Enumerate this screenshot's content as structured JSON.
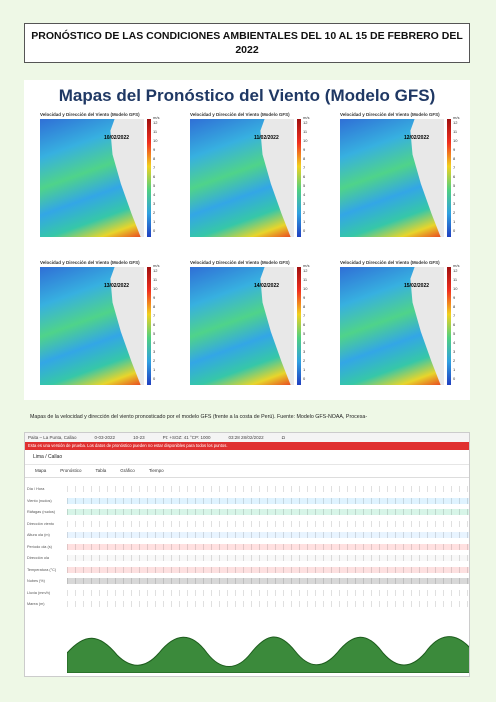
{
  "document": {
    "title": "PRONÓSTICO DE LAS CONDICIONES AMBIENTALES  DEL 10 AL 15 DE FEBRERO DEL 2022"
  },
  "figure": {
    "heading": "Mapas del Pronóstico del Viento (Modelo GFS)",
    "panel_title": "Velocidad y Dirección del Viento (Modelo GFS)",
    "units": "m/s",
    "scale_ticks": [
      "12",
      "11",
      "10",
      "9",
      "8",
      "7",
      "6",
      "5",
      "4",
      "3",
      "2",
      "1",
      "0"
    ],
    "panels": [
      {
        "date": "10/02/2022"
      },
      {
        "date": "11/02/2022"
      },
      {
        "date": "12/02/2022"
      },
      {
        "date": "13/02/2022"
      },
      {
        "date": "14/02/2022"
      },
      {
        "date": "15/02/2022"
      }
    ],
    "caption": "Mapas de la velocidad y dirección del viento pronosticado por el modelo GFS (frente a la costa de Perú). Fuente: Modelo GFS-NOAA, Procesa-"
  },
  "windfinder": {
    "topbar": [
      "Paita – La Punta, Callao",
      "0-03-2022",
      "10-23",
      "Pt: +SOZ: 41 °CP: 1000",
      "03:28 28/02/2022",
      "Ω"
    ],
    "warning": "Esta es una versión de prueba. Los datos de pronóstico pueden no estar disponibles para todos los puntos.",
    "place": "Lima / Callao",
    "tools": [
      "Mapa",
      "Pronóstico",
      "Tabla",
      "Gráfico",
      "Tiempo"
    ],
    "rows": [
      {
        "label": "Día / Hora"
      },
      {
        "label": "Viento (nudos)"
      },
      {
        "label": "Ráfagas (nudos)"
      },
      {
        "label": "Dirección viento"
      },
      {
        "label": "Altura ola (m)"
      },
      {
        "label": "Período ola (s)"
      },
      {
        "label": "Dirección ola"
      },
      {
        "label": "Temperatura (°C)"
      },
      {
        "label": "Nubes (%)"
      },
      {
        "label": "Lluvia (mm/h)"
      },
      {
        "label": "Marea (m)"
      }
    ]
  }
}
